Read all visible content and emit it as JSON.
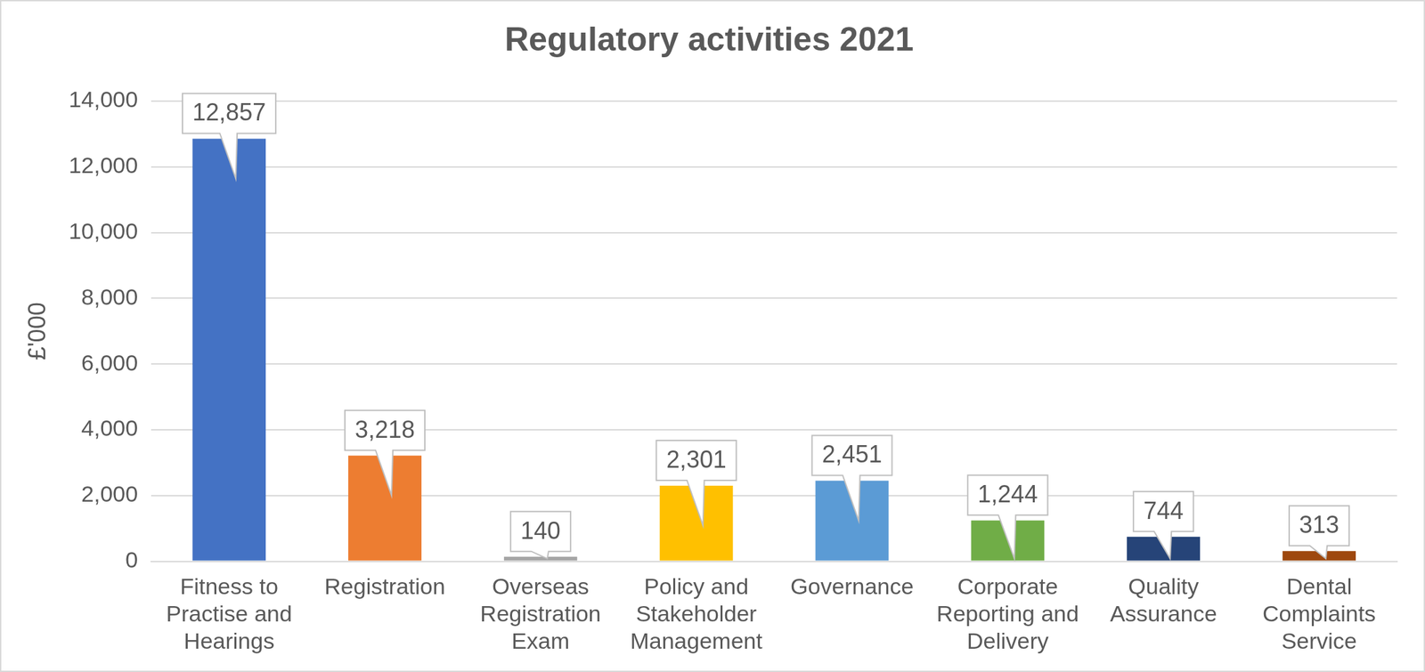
{
  "chart_data": {
    "type": "bar",
    "title": "Regulatory activities 2021",
    "y_label": "£'000",
    "categories": [
      "Fitness to Practise and Hearings",
      "Registration",
      "Overseas Registration Exam",
      "Policy and Stakeholder Management",
      "Governance",
      "Corporate Reporting and Delivery",
      "Quality Assurance",
      "Dental Complaints Service"
    ],
    "values": [
      12857,
      3218,
      140,
      2301,
      2451,
      1244,
      744,
      313
    ],
    "value_labels": [
      "12,857",
      "3,218",
      "140",
      "2,301",
      "2,451",
      "1,244",
      "744",
      "313"
    ],
    "colors": [
      "#4472c4",
      "#ed7d31",
      "#a5a5a5",
      "#ffc000",
      "#5b9bd5",
      "#70ad47",
      "#264478",
      "#9e480e"
    ],
    "ylim": [
      0,
      14000
    ],
    "yticks": [
      0,
      {
        "value": 2000,
        "label": "2,000"
      },
      {
        "value": 4000,
        "label": "4,000"
      },
      {
        "value": 6000,
        "label": "6,000"
      },
      {
        "value": 8000,
        "label": "8,000"
      },
      {
        "value": 10000,
        "label": "10,000"
      },
      {
        "value": 12000,
        "label": "12,000"
      },
      {
        "value": 14000,
        "label": "14,000"
      }
    ],
    "grid": true,
    "data_labels": true
  }
}
